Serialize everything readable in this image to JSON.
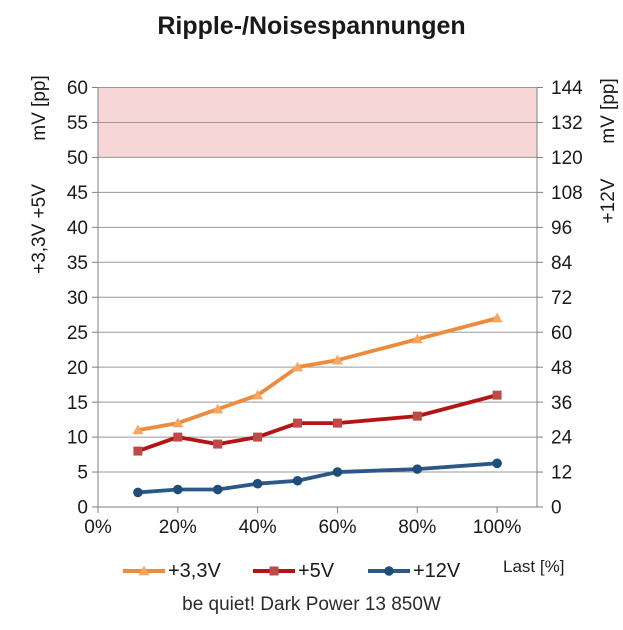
{
  "chart_data": {
    "type": "line",
    "title": "Ripple-/Noisespannungen",
    "caption": "be quiet! Dark Power 13 850W",
    "x_axis_label": "Last [%]",
    "x_tick_labels": [
      "0%",
      "20%",
      "40%",
      "60%",
      "80%",
      "100%"
    ],
    "x_tick_positions_pct": [
      0,
      20,
      40,
      60,
      80,
      100
    ],
    "x_range_pct": [
      0,
      110
    ],
    "load_points_pct": [
      10,
      20,
      30,
      40,
      50,
      60,
      80,
      100
    ],
    "left_axis": {
      "unit_label": "mV [pp]",
      "rails_label": "+3,3V +5V",
      "range": [
        0,
        60
      ],
      "tick_step": 5,
      "ticks": [
        0,
        5,
        10,
        15,
        20,
        25,
        30,
        35,
        40,
        45,
        50,
        55,
        60
      ]
    },
    "right_axis": {
      "unit_label": "mV [pp]",
      "rails_label": "+12V",
      "range": [
        0,
        144
      ],
      "tick_step": 12,
      "ticks": [
        0,
        12,
        24,
        36,
        48,
        60,
        72,
        84,
        96,
        108,
        120,
        132,
        144
      ]
    },
    "limit_band": {
      "axis": "left",
      "from": 50,
      "to": 60,
      "color": "#F6D6D6"
    },
    "series": [
      {
        "name": "+3,3V",
        "axis": "left",
        "marker": "triangle",
        "color": "#EE8A3C",
        "marker_color": "#F8A562",
        "values": [
          11,
          12,
          14,
          16,
          20,
          21,
          24,
          27
        ]
      },
      {
        "name": "+5V",
        "axis": "left",
        "marker": "square",
        "color": "#B51414",
        "marker_color": "#BE4B48",
        "values": [
          8,
          10,
          9,
          10,
          12,
          12,
          13,
          16
        ]
      },
      {
        "name": "+12V",
        "axis": "right",
        "marker": "circle",
        "color": "#2B5889",
        "marker_color": "#1F4E79",
        "values": [
          5,
          6,
          6,
          8,
          9,
          12,
          13,
          15
        ]
      }
    ],
    "legend_position": "bottom",
    "grid": "horizontal-only",
    "grid_color": "#999999",
    "axis_color": "#808080",
    "text_color": "#1A1A1A"
  }
}
